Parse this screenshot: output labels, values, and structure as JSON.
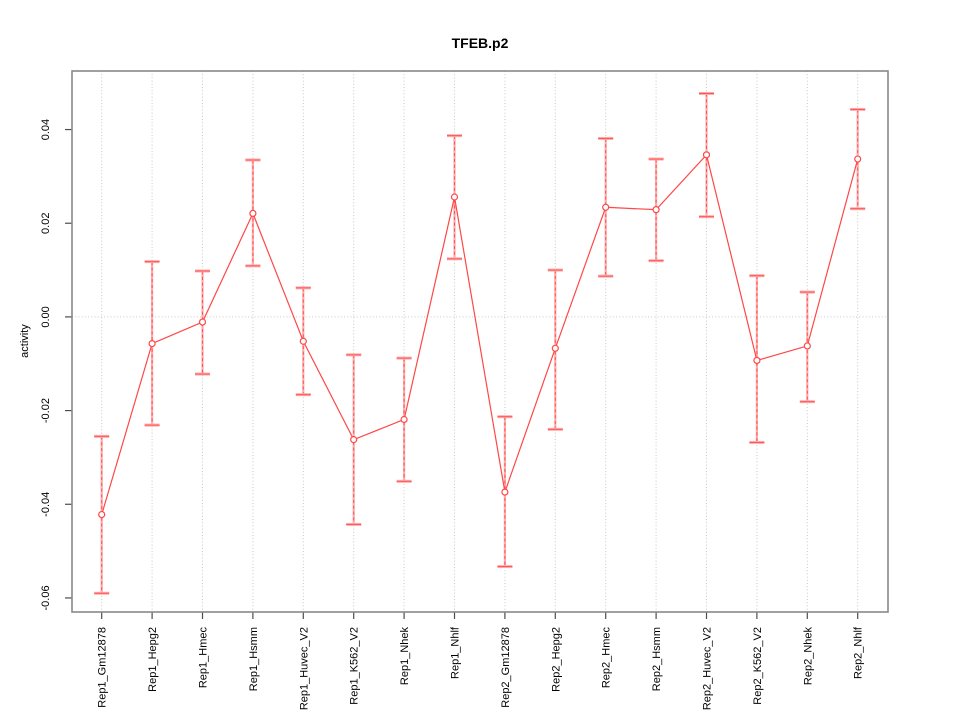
{
  "window": {
    "background": "#ffffff"
  },
  "chart_data": {
    "type": "scatter",
    "title": "TFEB.p2",
    "xlabel": "",
    "ylabel": "activity",
    "grid": true,
    "zero_line": true,
    "x_tick_rotation": 90,
    "y_tick_rotation": 90,
    "legend": "none",
    "ylim": [
      -0.063,
      0.0525
    ],
    "yticks": [
      0.04,
      0.02,
      0.0,
      -0.02,
      -0.04,
      -0.06
    ],
    "ytick_labels": [
      "0.04",
      "0.02",
      "0.00",
      "-0.02",
      "-0.04",
      "-0.06"
    ],
    "categories": [
      "Rep1_Gm12878",
      "Rep1_Hepg2",
      "Rep1_Hmec",
      "Rep1_Hsmm",
      "Rep1_Huvec_V2",
      "Rep1_K562_V2",
      "Rep1_Nhek",
      "Rep1_Nhlf",
      "Rep2_Gm12878",
      "Rep2_Hepg2",
      "Rep2_Hmec",
      "Rep2_Hsmm",
      "Rep2_Huvec_V2",
      "Rep2_K562_V2",
      "Rep2_Nhek",
      "Rep2_Nhlf"
    ],
    "series": [
      {
        "name": "activity",
        "marker": "open-circle",
        "values": [
          -0.0422,
          -0.0057,
          -0.0011,
          0.0221,
          -0.0052,
          -0.0262,
          -0.0219,
          0.0256,
          -0.0374,
          -0.0067,
          0.0234,
          0.0229,
          0.0346,
          -0.0093,
          -0.0062,
          0.0337
        ],
        "ci_low": [
          -0.059,
          -0.0231,
          -0.0122,
          0.0109,
          -0.0166,
          -0.0443,
          -0.0351,
          0.0124,
          -0.0533,
          -0.024,
          0.0087,
          0.012,
          0.0214,
          -0.0268,
          -0.0181,
          0.0231
        ],
        "ci_high": [
          -0.0255,
          0.0118,
          0.0098,
          0.0335,
          0.0062,
          -0.0081,
          -0.0088,
          0.0387,
          -0.0213,
          0.01,
          0.0381,
          0.0337,
          0.0477,
          0.0088,
          0.0053,
          0.0443
        ]
      }
    ],
    "colors": {
      "series_line": "#ff4747",
      "marker": "#ff4747",
      "errorbar_light": "#ffacac",
      "errorbar_dash": "#ff5252",
      "grid": "#c9c9c9",
      "frame": "#888888",
      "tick": "#4d4d4d",
      "text": "#000000",
      "background": "#ffffff"
    }
  }
}
